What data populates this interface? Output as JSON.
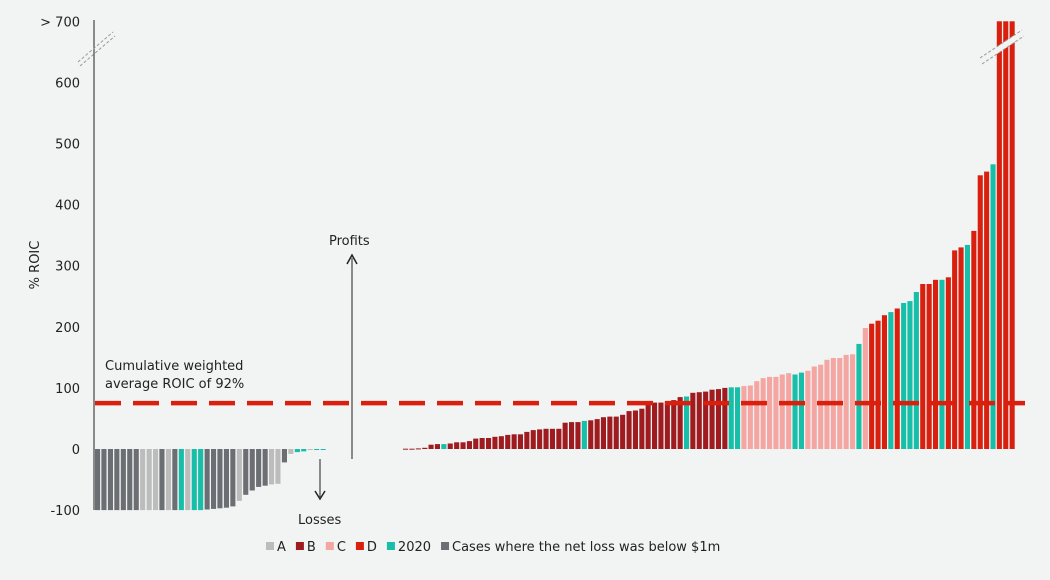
{
  "chart_data": {
    "type": "bar",
    "ylabel": "% ROIC",
    "ylim": [
      -100,
      700
    ],
    "y_ticks": [
      "> 700",
      "600",
      "500",
      "400",
      "300",
      "200",
      "100",
      "0",
      "-100"
    ],
    "y_tick_values": [
      700,
      600,
      500,
      400,
      300,
      200,
      100,
      0,
      -100
    ],
    "grid": false,
    "legend_position": "bottom",
    "legend": [
      {
        "key": "A",
        "label": "A",
        "color": "#bcbcbc"
      },
      {
        "key": "B",
        "label": "B",
        "color": "#9e1b20"
      },
      {
        "key": "C",
        "label": "C",
        "color": "#f4a6a3"
      },
      {
        "key": "D",
        "label": "D",
        "color": "#d9200f"
      },
      {
        "key": "T",
        "label": "2020",
        "color": "#17bfa8"
      },
      {
        "key": "G",
        "label": "Cases where the net loss was below $1m",
        "color": "#6b6e72"
      }
    ],
    "reference_line": {
      "value": 75,
      "color": "#d9200f",
      "style": "dashed"
    },
    "axis_break": "> 700",
    "loss_bars": [
      [
        -100,
        "G"
      ],
      [
        -100,
        "G"
      ],
      [
        -100,
        "G"
      ],
      [
        -100,
        "G"
      ],
      [
        -100,
        "G"
      ],
      [
        -100,
        "G"
      ],
      [
        -100,
        "G"
      ],
      [
        -100,
        "A"
      ],
      [
        -100,
        "A"
      ],
      [
        -100,
        "A"
      ],
      [
        -100,
        "G"
      ],
      [
        -100,
        "A"
      ],
      [
        -100,
        "G"
      ],
      [
        -100,
        "T"
      ],
      [
        -100,
        "A"
      ],
      [
        -100,
        "T"
      ],
      [
        -100,
        "T"
      ],
      [
        -99,
        "G"
      ],
      [
        -98,
        "G"
      ],
      [
        -97,
        "G"
      ],
      [
        -96,
        "G"
      ],
      [
        -94,
        "G"
      ],
      [
        -85,
        "A"
      ],
      [
        -75,
        "G"
      ],
      [
        -68,
        "G"
      ],
      [
        -62,
        "G"
      ],
      [
        -60,
        "G"
      ],
      [
        -58,
        "A"
      ],
      [
        -57,
        "A"
      ],
      [
        -22,
        "G"
      ],
      [
        -8,
        "A"
      ],
      [
        -5,
        "T"
      ],
      [
        -4,
        "T"
      ],
      [
        -1,
        "A"
      ],
      [
        -1,
        "T"
      ],
      [
        -0.5,
        "T"
      ]
    ],
    "profit_bars": [
      [
        0.5,
        "B"
      ],
      [
        0.5,
        "B"
      ],
      [
        1,
        "B"
      ],
      [
        2,
        "B"
      ],
      [
        7,
        "B"
      ],
      [
        8,
        "B"
      ],
      [
        8,
        "T"
      ],
      [
        9,
        "B"
      ],
      [
        11,
        "B"
      ],
      [
        11,
        "B"
      ],
      [
        13,
        "B"
      ],
      [
        17,
        "B"
      ],
      [
        18,
        "B"
      ],
      [
        18,
        "B"
      ],
      [
        20,
        "B"
      ],
      [
        21,
        "B"
      ],
      [
        23,
        "B"
      ],
      [
        24,
        "B"
      ],
      [
        24,
        "B"
      ],
      [
        28,
        "B"
      ],
      [
        31,
        "B"
      ],
      [
        32,
        "B"
      ],
      [
        33,
        "B"
      ],
      [
        33,
        "B"
      ],
      [
        33,
        "B"
      ],
      [
        43,
        "B"
      ],
      [
        44,
        "B"
      ],
      [
        44,
        "B"
      ],
      [
        46,
        "T"
      ],
      [
        47,
        "B"
      ],
      [
        49,
        "B"
      ],
      [
        52,
        "B"
      ],
      [
        53,
        "B"
      ],
      [
        53,
        "B"
      ],
      [
        56,
        "B"
      ],
      [
        62,
        "B"
      ],
      [
        63,
        "B"
      ],
      [
        66,
        "B"
      ],
      [
        77,
        "B"
      ],
      [
        76,
        "B"
      ],
      [
        76,
        "B"
      ],
      [
        78,
        "B"
      ],
      [
        80,
        "B"
      ],
      [
        85,
        "B"
      ],
      [
        86,
        "T"
      ],
      [
        92,
        "B"
      ],
      [
        93,
        "B"
      ],
      [
        94,
        "B"
      ],
      [
        97,
        "B"
      ],
      [
        98,
        "B"
      ],
      [
        100,
        "B"
      ],
      [
        101,
        "T"
      ],
      [
        101,
        "T"
      ],
      [
        103,
        "C"
      ],
      [
        104,
        "C"
      ],
      [
        111,
        "C"
      ],
      [
        116,
        "C"
      ],
      [
        118,
        "C"
      ],
      [
        118,
        "C"
      ],
      [
        122,
        "C"
      ],
      [
        124,
        "C"
      ],
      [
        122,
        "T"
      ],
      [
        125,
        "T"
      ],
      [
        128,
        "C"
      ],
      [
        135,
        "C"
      ],
      [
        138,
        "C"
      ],
      [
        146,
        "C"
      ],
      [
        149,
        "C"
      ],
      [
        149,
        "C"
      ],
      [
        154,
        "C"
      ],
      [
        155,
        "C"
      ],
      [
        172,
        "T"
      ],
      [
        198,
        "C"
      ],
      [
        205,
        "D"
      ],
      [
        210,
        "D"
      ],
      [
        219,
        "D"
      ],
      [
        224,
        "T"
      ],
      [
        230,
        "D"
      ],
      [
        239,
        "T"
      ],
      [
        242,
        "T"
      ],
      [
        257,
        "T"
      ],
      [
        270,
        "D"
      ],
      [
        270,
        "D"
      ],
      [
        277,
        "D"
      ],
      [
        277,
        "T"
      ],
      [
        281,
        "D"
      ],
      [
        325,
        "D"
      ],
      [
        330,
        "D"
      ],
      [
        334,
        "T"
      ],
      [
        357,
        "D"
      ],
      [
        448,
        "D"
      ],
      [
        454,
        "D"
      ],
      [
        466,
        "T"
      ],
      [
        700,
        "D"
      ],
      [
        700,
        "D"
      ],
      [
        700,
        "D"
      ]
    ],
    "annotations": {
      "avg_line1": "Cumulative weighted",
      "avg_line2": "average ROIC of 92%",
      "profits": "Profits",
      "losses": "Losses"
    }
  }
}
